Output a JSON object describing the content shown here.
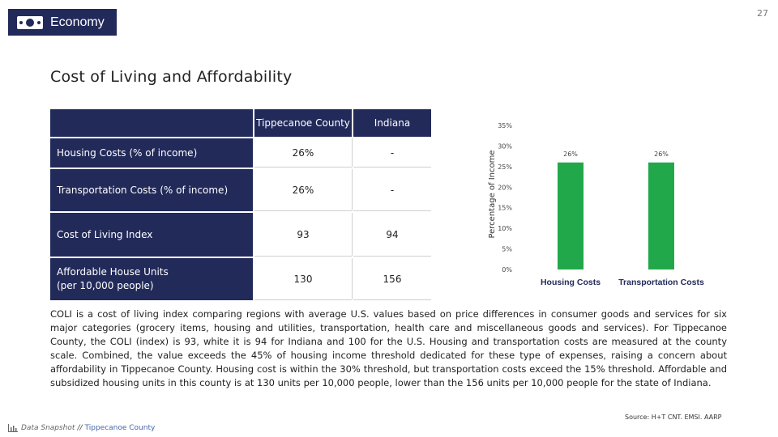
{
  "page_number": "27",
  "header": {
    "section": "Economy"
  },
  "title": "Cost of Living and Affordability",
  "table": {
    "columns": [
      "Tippecanoe County",
      "Indiana"
    ],
    "rows": [
      {
        "label": "Housing Costs (% of income)",
        "tippecanoe": "26%",
        "indiana": "-"
      },
      {
        "label": "Transportation Costs (% of income)",
        "tippecanoe": "26%",
        "indiana": "-"
      },
      {
        "label": "Cost of Living Index",
        "tippecanoe": "93",
        "indiana": "94"
      },
      {
        "label": "Affordable House Units (per 10,000 people)",
        "tippecanoe": "130",
        "indiana": "156"
      }
    ]
  },
  "chart_data": {
    "type": "bar",
    "categories": [
      "Housing Costs",
      "Transportation Costs"
    ],
    "values": [
      26,
      26
    ],
    "data_labels": [
      "26%",
      "26%"
    ],
    "ylabel": "Percentage of Income",
    "ylim": [
      0,
      35
    ],
    "yticks": [
      "0%",
      "5%",
      "10%",
      "15%",
      "20%",
      "25%",
      "30%",
      "35%"
    ],
    "bar_color": "#21a84a",
    "grid": false
  },
  "description": "COLI is a cost of living index comparing regions with average U.S. values based on price differences in consumer goods and services for six major categories (grocery items, housing and utilities, transportation, health care and miscellaneous goods and services). For Tippecanoe County, the COLI (index) is 93, white it is 94 for Indiana and 100 for the U.S.  Housing and transportation costs are measured at the county scale.  Combined, the value exceeds the 45% of housing income threshold dedicated for these type of expenses, raising a concern about affordability in Tippecanoe County.  Housing cost is within the 30% threshold, but transportation costs exceed the 15% threshold. Affordable and subsidized housing units in this county is at 130 units per 10,000 people, lower than the 156 units per 10,000 people for the state of Indiana.",
  "source": "Source: H+T CNT. EMSI. AARP",
  "footer": {
    "brand": "Data Snapshot",
    "separator": "//",
    "region": "Tippecanoe County"
  },
  "colors": {
    "navy": "#222a5a",
    "green": "#21a84a"
  }
}
